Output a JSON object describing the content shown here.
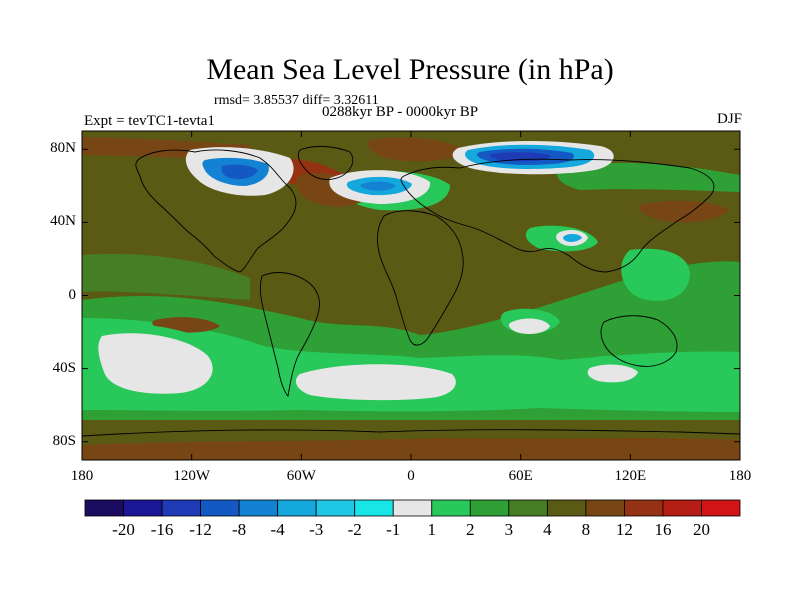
{
  "header": {
    "title": "Mean Sea Level Pressure (in hPa)",
    "stats": "rmsd= 3.85537 diff= 3.32611",
    "experiment": "Expt = tevTC1-tevta1",
    "period": "0288kyr BP - 0000kyr BP",
    "season": "DJF"
  },
  "axes": {
    "y_ticks": [
      {
        "label": "80N",
        "lat": 80
      },
      {
        "label": "40N",
        "lat": 40
      },
      {
        "label": "0",
        "lat": 0
      },
      {
        "label": "40S",
        "lat": -40
      },
      {
        "label": "80S",
        "lat": -80
      }
    ],
    "x_ticks": [
      {
        "label": "180",
        "lon": -180
      },
      {
        "label": "120W",
        "lon": -120
      },
      {
        "label": "60W",
        "lon": -60
      },
      {
        "label": "0",
        "lon": 0
      },
      {
        "label": "60E",
        "lon": 60
      },
      {
        "label": "120E",
        "lon": 120
      },
      {
        "label": "180",
        "lon": 180
      }
    ],
    "lat_range": [
      -90,
      90
    ],
    "lon_range": [
      -180,
      180
    ]
  },
  "colorbar": {
    "colors": [
      "#1a0c5e",
      "#1a1696",
      "#1e3ab4",
      "#1458c4",
      "#1482d2",
      "#14a8dc",
      "#1ec8e6",
      "#18e6e6",
      "#e6e6e6",
      "#28c85a",
      "#2ea036",
      "#467e26",
      "#5a5a14",
      "#784614",
      "#963214",
      "#b41e14",
      "#d21414"
    ],
    "labels": [
      "-20",
      "-16",
      "-12",
      "-8",
      "-4",
      "-3",
      "-2",
      "-1",
      "1",
      "2",
      "3",
      "4",
      "8",
      "12",
      "16",
      "20"
    ]
  },
  "map_regions": {
    "background_class": "8",
    "regions": [
      {
        "name": "south-pacific-low-anomaly",
        "class": "-1",
        "halo": "2"
      },
      {
        "name": "south-atlantic-low-anomaly",
        "class": "-1",
        "halo": "2"
      },
      {
        "name": "south-indian-low-anomaly",
        "class": "-1",
        "halo": "2"
      },
      {
        "name": "australia-low-anomaly",
        "class": "-1",
        "halo": "2"
      },
      {
        "name": "tibet-low-anomaly",
        "class": "-3",
        "halo": "2"
      },
      {
        "name": "north-atlantic-low-anomaly",
        "class": "-4",
        "halo": "-1"
      },
      {
        "name": "arctic-siberia-low-anomaly",
        "class": "-12",
        "halo": "-3"
      },
      {
        "name": "canadian-arctic-low-anomaly",
        "class": "-8",
        "halo": "-1"
      }
    ]
  }
}
